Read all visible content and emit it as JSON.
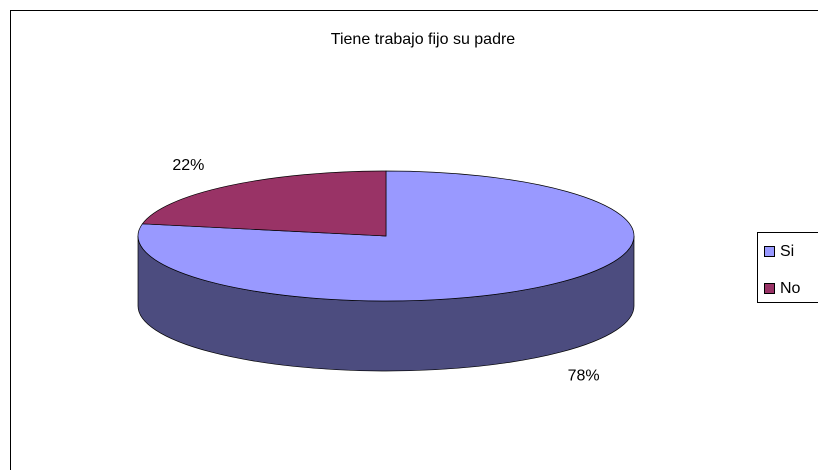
{
  "chart_data": {
    "type": "pie3d",
    "title": "Tiene trabajo fijo su padre",
    "categories": [
      "Si",
      "No"
    ],
    "values": [
      78,
      22
    ],
    "value_labels": [
      "78%",
      "22%"
    ],
    "colors": [
      "#9999ff",
      "#993366"
    ],
    "legend": "right"
  }
}
